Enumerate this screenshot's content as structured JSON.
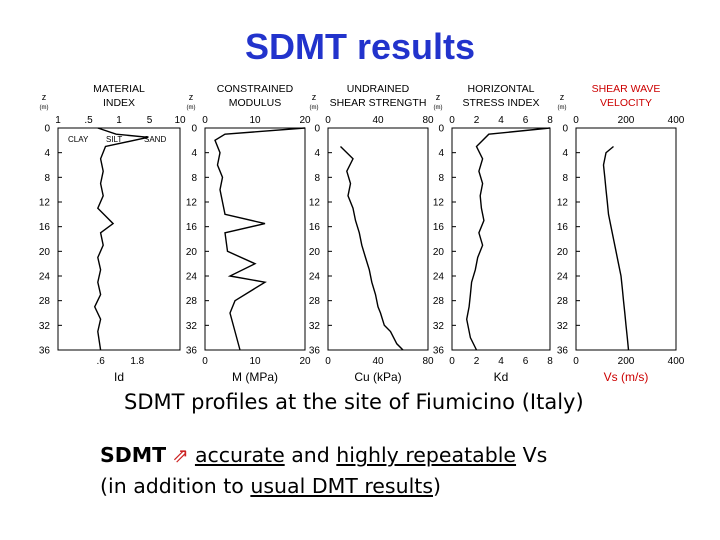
{
  "slide": {
    "title": "SDMT results",
    "caption": "SDMT profiles at the site of Fiumicino (Italy)",
    "summary": {
      "bold_lead": "SDMT",
      "arrow_icon": "right-arrow-icon",
      "text_accurate": "accurate",
      "text_and": " and ",
      "text_highly": "highly repeatable",
      "text_vs": " Vs",
      "text_paren_open": "(in addition to ",
      "text_usual": "usual DMT results",
      "text_paren_close": ")"
    }
  },
  "chart_data": [
    {
      "type": "line",
      "title_lines": [
        "MATERIAL",
        "INDEX"
      ],
      "depth_axis_label": "z",
      "depth_axis_unit": "(m)",
      "xlabel": "Id",
      "top_ticks": [
        "1",
        ".5",
        "1",
        "5",
        "10"
      ],
      "bottom_ticks": [
        ".6",
        "1.8"
      ],
      "annotations": [
        "CLAY",
        "SILT",
        "SAND"
      ],
      "ylim": [
        0,
        36
      ],
      "y_ticks": [
        0,
        4,
        8,
        12,
        16,
        20,
        24,
        28,
        32,
        36
      ],
      "series": [
        {
          "x": [
            0.45,
            0.9,
            3,
            0.6,
            0.5,
            0.55,
            0.5,
            0.55,
            0.45,
            0.8,
            0.5,
            0.55,
            0.45,
            0.5,
            0.45,
            0.5,
            0.4,
            0.5,
            0.45,
            0.5
          ],
          "y": [
            0,
            1,
            1.5,
            3,
            5,
            7,
            9,
            11,
            13,
            15.5,
            17,
            19,
            21,
            23,
            25,
            27,
            29,
            31,
            33,
            36
          ]
        }
      ],
      "scale": "log",
      "xlim": [
        0.1,
        10
      ],
      "color": "#000000"
    },
    {
      "type": "line",
      "title_lines": [
        "CONSTRAINED",
        "MODULUS"
      ],
      "depth_axis_label": "z",
      "depth_axis_unit": "(m)",
      "xlabel": "M (MPa)",
      "top_ticks": [
        "0",
        "10",
        "20"
      ],
      "bottom_ticks": [
        "0",
        "10",
        "20"
      ],
      "xlim": [
        0,
        20
      ],
      "ylim": [
        0,
        36
      ],
      "y_ticks": [
        0,
        4,
        8,
        12,
        16,
        20,
        24,
        28,
        32,
        36
      ],
      "series": [
        {
          "x": [
            20,
            4,
            2,
            3,
            2.5,
            3.5,
            3,
            3.5,
            4,
            12,
            4,
            4.5,
            10,
            5,
            12,
            6,
            5,
            6,
            7
          ],
          "y": [
            0,
            1,
            2,
            4,
            6,
            8,
            10,
            12,
            14,
            15.5,
            17,
            20,
            22,
            24,
            25,
            28,
            30,
            33,
            36
          ]
        }
      ],
      "color": "#000000"
    },
    {
      "type": "line",
      "title_lines": [
        "UNDRAINED",
        "SHEAR STRENGTH"
      ],
      "depth_axis_label": "z",
      "depth_axis_unit": "(m)",
      "xlabel": "Cu (kPa)",
      "top_ticks": [
        "0",
        "40",
        "80"
      ],
      "bottom_ticks": [
        "0",
        "40",
        "80"
      ],
      "xlim": [
        0,
        80
      ],
      "ylim": [
        0,
        36
      ],
      "y_ticks": [
        0,
        4,
        8,
        12,
        16,
        20,
        24,
        28,
        32,
        36
      ],
      "series": [
        {
          "x": [
            10,
            20,
            15,
            18,
            16,
            20,
            22,
            25,
            27,
            30,
            33,
            35,
            38,
            40,
            42,
            45,
            50,
            55,
            60
          ],
          "y": [
            3,
            5,
            7,
            9,
            11,
            13,
            15,
            17,
            19,
            21,
            23,
            25,
            27,
            29,
            30,
            32,
            33,
            35,
            36
          ]
        }
      ],
      "color": "#000000"
    },
    {
      "type": "line",
      "title_lines": [
        "HORIZONTAL",
        "STRESS INDEX"
      ],
      "depth_axis_label": "z",
      "depth_axis_unit": "(m)",
      "xlabel": "Kd",
      "top_ticks": [
        "0",
        "2",
        "4",
        "6",
        "8"
      ],
      "bottom_ticks": [
        "0",
        "2",
        "4",
        "6",
        "8"
      ],
      "xlim": [
        0,
        8
      ],
      "ylim": [
        0,
        36
      ],
      "y_ticks": [
        0,
        4,
        8,
        12,
        16,
        20,
        24,
        28,
        32,
        36
      ],
      "series": [
        {
          "x": [
            8,
            3,
            2,
            2.5,
            2.2,
            2.5,
            2.3,
            2.4,
            2.6,
            2.2,
            2.5,
            2.1,
            1.9,
            1.6,
            1.5,
            1.4,
            1.2,
            1.5,
            2
          ],
          "y": [
            0,
            1,
            3,
            5,
            7,
            9,
            11,
            13,
            15,
            17,
            19,
            21,
            23,
            25,
            27,
            29,
            31,
            34,
            36
          ]
        }
      ],
      "color": "#000000"
    },
    {
      "type": "line",
      "title_lines": [
        "SHEAR WAVE",
        "VELOCITY"
      ],
      "title_color": "#cc0000",
      "depth_axis_label": "z",
      "depth_axis_unit": "(m)",
      "xlabel": "Vs (m/s)",
      "xlabel_color": "#cc0000",
      "top_ticks": [
        "0",
        "200",
        "400"
      ],
      "bottom_ticks": [
        "0",
        "200",
        "400"
      ],
      "xlim": [
        0,
        400
      ],
      "ylim": [
        0,
        36
      ],
      "y_ticks": [
        0,
        4,
        8,
        12,
        16,
        20,
        24,
        28,
        32,
        36
      ],
      "series": [
        {
          "x": [
            150,
            120,
            110,
            115,
            120,
            125,
            130,
            140,
            150,
            160,
            170,
            180,
            185,
            190,
            195,
            200,
            205,
            210
          ],
          "y": [
            3,
            4,
            6,
            8,
            10,
            12,
            14,
            16,
            18,
            20,
            22,
            24,
            26,
            28,
            30,
            32,
            34,
            36
          ]
        }
      ],
      "color": "#000000"
    }
  ]
}
